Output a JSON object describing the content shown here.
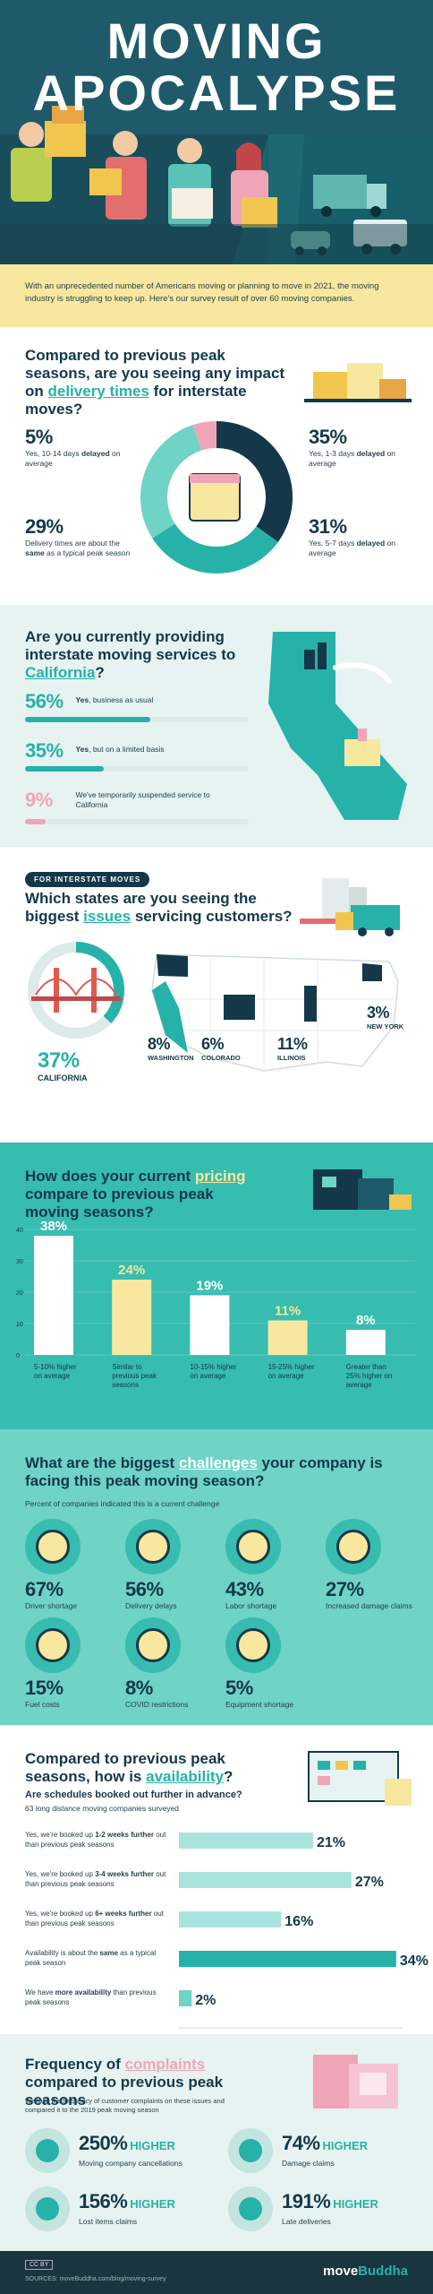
{
  "title": {
    "line1": "MOVING",
    "line2": "APOCALYPSE"
  },
  "intro": "With an unprecedented number of Americans moving or planning to move in 2021, the moving industry is struggling to keep up. Here's our survey result of over 60 moving companies.",
  "impact": {
    "q_pre": "Compared to previous peak seasons, are you seeing any impact on ",
    "q_hl": "delivery times",
    "q_post": " for interstate moves?",
    "items": [
      {
        "pct": "5%",
        "text_pre": "Yes, 10-14 days ",
        "text_bold": "delayed",
        "text_post": " on average"
      },
      {
        "pct": "29%",
        "text_pre": "Delivery times are about the ",
        "text_bold": "same",
        "text_post": " as a typical peak season"
      },
      {
        "pct": "35%",
        "text_pre": "Yes, 1-3 days ",
        "text_bold": "delayed",
        "text_post": " on average"
      },
      {
        "pct": "31%",
        "text_pre": "Yes, 5-7 days ",
        "text_bold": "delayed",
        "text_post": " on average"
      }
    ],
    "donut": [
      35,
      31,
      29,
      5
    ]
  },
  "california": {
    "q_pre": "Are you currently providing interstate moving services to ",
    "q_hl": "California",
    "q_post": "?",
    "items": [
      {
        "pct": "56%",
        "bold": "Yes",
        "rest": ", business as usual",
        "value": 56
      },
      {
        "pct": "35%",
        "bold": "Yes",
        "rest": ", but on a limited basis",
        "value": 35
      },
      {
        "pct": "9%",
        "bold": "",
        "rest": "We've temporarily suspended service to California",
        "value": 9
      }
    ]
  },
  "states": {
    "tag": "FOR INTERSTATE MOVES",
    "q_pre": "Which states are you seeing the biggest ",
    "q_hl": "issues",
    "q_post": " servicing customers?",
    "items": [
      {
        "pct": "37%",
        "name": "CALIFORNIA",
        "value": 37
      },
      {
        "pct": "8%",
        "name": "WASHINGTON",
        "value": 8
      },
      {
        "pct": "6%",
        "name": "COLORADO",
        "value": 6
      },
      {
        "pct": "11%",
        "name": "ILLINOIS",
        "value": 11
      },
      {
        "pct": "3%",
        "name": "NEW YORK",
        "value": 3
      }
    ]
  },
  "pricing": {
    "q_pre": "How does your current ",
    "q_hl": "pricing",
    "q_post": " compare to previous peak moving seasons?",
    "chart_data": {
      "type": "bar",
      "categories": [
        "5-10% higher on average",
        "Similar to previous peak seasons",
        "10-15% higher on average",
        "15-25% higher on average",
        "Greater than 25% higher on average"
      ],
      "values": [
        38,
        24,
        19,
        11,
        8
      ],
      "labels": [
        "38%",
        "24%",
        "19%",
        "11%",
        "8%"
      ],
      "ylim": [
        0,
        40
      ],
      "yticks": [
        "0",
        "10",
        "20",
        "30",
        "40"
      ],
      "colors": [
        "#ffffff",
        "#f8e79f",
        "#ffffff",
        "#f8e79f",
        "#ffffff"
      ]
    }
  },
  "challenges": {
    "q_pre": "What are the biggest ",
    "q_hl": "challenges",
    "q_post": " your company is facing this peak moving season?",
    "note": "Percent of companies indicated this is a current challenge",
    "items": [
      {
        "pct": "67%",
        "label": "Driver shortage",
        "icon": "steering-wheel-icon"
      },
      {
        "pct": "56%",
        "label": "Delivery delays",
        "icon": "hourglass-icon"
      },
      {
        "pct": "43%",
        "label": "Labor shortage",
        "icon": "worker-icon"
      },
      {
        "pct": "27%",
        "label": "Increased damage claims",
        "icon": "broken-box-icon"
      },
      {
        "pct": "15%",
        "label": "Fuel costs",
        "icon": "fuel-icon"
      },
      {
        "pct": "8%",
        "label": "COVID restrictions",
        "icon": "document-icon"
      },
      {
        "pct": "5%",
        "label": "Equipment shortage",
        "icon": "clipboard-icon"
      }
    ]
  },
  "availability": {
    "q_pre": "Compared to previous peak seasons, how is ",
    "q_hl": "availability",
    "q_post": "?",
    "sub": "Are schedules booked out further in advance?",
    "note": "63 long distance moving companies surveyed",
    "chart_data": {
      "type": "bar",
      "orientation": "horizontal",
      "categories": [
        "Yes, we're booked up 1-2 weeks further out than previous peak seasons",
        "Yes, we're booked up 3-4 weeks further out than previous peak seasons",
        "Yes, we're booked up 6+ weeks further out than previous peak seasons",
        "Availability is about the same as a typical peak season",
        "We have more availability than previous peak seasons"
      ],
      "values": [
        21,
        27,
        16,
        34,
        2
      ],
      "labels": [
        "21%",
        "27%",
        "16%",
        "34%",
        "2%"
      ],
      "xlim": [
        0,
        35
      ],
      "xticks": [
        "0",
        "5",
        "10",
        "15",
        "20",
        "25",
        "30",
        "35"
      ]
    },
    "rows": [
      {
        "pre": "Yes, we're booked up ",
        "bold": "1-2 weeks further",
        "post": " out than previous peak seasons"
      },
      {
        "pre": "Yes, we're booked up ",
        "bold": "3-4 weeks further",
        "post": " out than previous peak seasons"
      },
      {
        "pre": "Yes, we're booked up ",
        "bold": "6+ weeks further",
        "post": " out than previous peak seasons"
      },
      {
        "pre": "Availability is about the ",
        "bold": "same",
        "post": " as a typical peak season"
      },
      {
        "pre": "We have ",
        "bold": "more availability",
        "post": " than previous peak seasons"
      }
    ]
  },
  "complaints": {
    "q_pre": "Frequency of ",
    "q_hl": "complaints",
    "q_post": " compared to previous peak seasons",
    "note": "We took the frequency of customer complaints on these issues and compared it to the 2019 peak moving season",
    "items": [
      {
        "pct": "250%",
        "word": "HIGHER",
        "label": "Moving company cancellations",
        "icon": "calendar-x-icon"
      },
      {
        "pct": "74%",
        "word": "HIGHER",
        "label": "Damage claims",
        "icon": "broken-glass-icon"
      },
      {
        "pct": "156%",
        "word": "HIGHER",
        "label": "Lost items claims",
        "icon": "lost-box-icon"
      },
      {
        "pct": "191%",
        "word": "HIGHER",
        "label": "Late deliveries",
        "icon": "clock-icon"
      }
    ]
  },
  "footer": {
    "license": "CC BY",
    "sources": "SOURCES: moveBuddha.com/blog/moving-survey",
    "brand_a": "move",
    "brand_b": "Buddha"
  },
  "colors": {
    "teal": "#26b2a8",
    "navy": "#14384a",
    "yellow": "#f8e79f",
    "pink": "#f0a4b8",
    "mint": "#6fd3c6"
  }
}
